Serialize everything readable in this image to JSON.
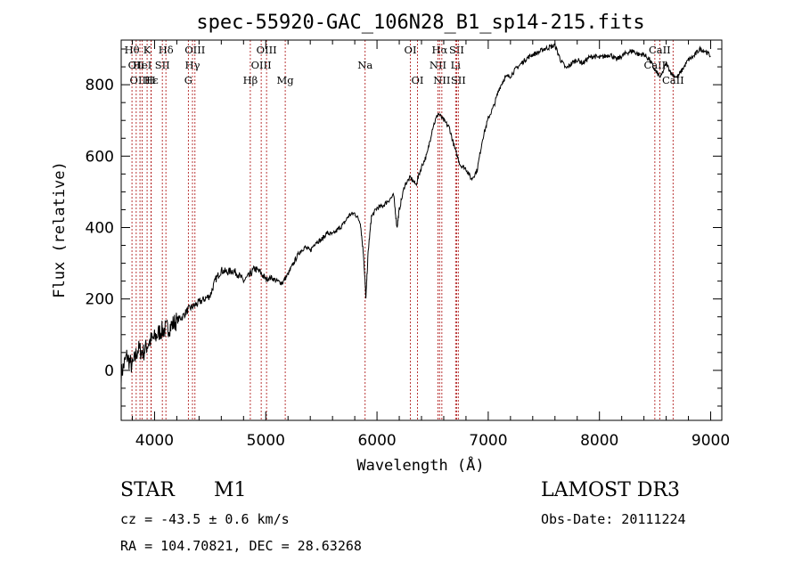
{
  "chart_data": {
    "type": "line",
    "title": "spec-55920-GAC_106N28_B1_sp14-215.fits",
    "xlabel": "Wavelength (Å)",
    "ylabel": "Flux (relative)",
    "xlim": [
      3700,
      9100
    ],
    "ylim": [
      -140,
      925
    ],
    "xticks": [
      4000,
      5000,
      6000,
      7000,
      8000,
      9000
    ],
    "yticks": [
      0,
      200,
      400,
      600,
      800
    ],
    "grid": false,
    "series": [
      {
        "name": "flux",
        "points": [
          [
            3700,
            -10
          ],
          [
            3750,
            40
          ],
          [
            3800,
            10
          ],
          [
            3850,
            60
          ],
          [
            3900,
            50
          ],
          [
            3950,
            80
          ],
          [
            4000,
            90
          ],
          [
            4050,
            110
          ],
          [
            4100,
            115
          ],
          [
            4150,
            125
          ],
          [
            4200,
            140
          ],
          [
            4250,
            150
          ],
          [
            4300,
            170
          ],
          [
            4350,
            180
          ],
          [
            4400,
            190
          ],
          [
            4450,
            200
          ],
          [
            4500,
            210
          ],
          [
            4550,
            255
          ],
          [
            4600,
            280
          ],
          [
            4650,
            275
          ],
          [
            4700,
            280
          ],
          [
            4750,
            270
          ],
          [
            4800,
            250
          ],
          [
            4850,
            265
          ],
          [
            4900,
            285
          ],
          [
            4950,
            275
          ],
          [
            5000,
            255
          ],
          [
            5050,
            260
          ],
          [
            5100,
            250
          ],
          [
            5150,
            245
          ],
          [
            5200,
            270
          ],
          [
            5250,
            300
          ],
          [
            5300,
            330
          ],
          [
            5350,
            345
          ],
          [
            5400,
            335
          ],
          [
            5450,
            360
          ],
          [
            5500,
            365
          ],
          [
            5550,
            385
          ],
          [
            5600,
            380
          ],
          [
            5650,
            395
          ],
          [
            5700,
            410
          ],
          [
            5750,
            435
          ],
          [
            5800,
            440
          ],
          [
            5850,
            415
          ],
          [
            5880,
            320
          ],
          [
            5900,
            200
          ],
          [
            5920,
            330
          ],
          [
            5950,
            430
          ],
          [
            6000,
            455
          ],
          [
            6050,
            460
          ],
          [
            6100,
            475
          ],
          [
            6150,
            490
          ],
          [
            6180,
            400
          ],
          [
            6200,
            450
          ],
          [
            6250,
            520
          ],
          [
            6300,
            540
          ],
          [
            6350,
            520
          ],
          [
            6400,
            570
          ],
          [
            6450,
            605
          ],
          [
            6500,
            680
          ],
          [
            6550,
            720
          ],
          [
            6600,
            700
          ],
          [
            6650,
            680
          ],
          [
            6700,
            620
          ],
          [
            6750,
            575
          ],
          [
            6800,
            565
          ],
          [
            6850,
            535
          ],
          [
            6900,
            560
          ],
          [
            6950,
            650
          ],
          [
            7000,
            705
          ],
          [
            7050,
            740
          ],
          [
            7100,
            790
          ],
          [
            7150,
            820
          ],
          [
            7200,
            825
          ],
          [
            7250,
            845
          ],
          [
            7300,
            860
          ],
          [
            7350,
            875
          ],
          [
            7400,
            885
          ],
          [
            7450,
            890
          ],
          [
            7500,
            900
          ],
          [
            7550,
            905
          ],
          [
            7600,
            910
          ],
          [
            7650,
            870
          ],
          [
            7700,
            845
          ],
          [
            7750,
            860
          ],
          [
            7800,
            870
          ],
          [
            7850,
            860
          ],
          [
            7900,
            875
          ],
          [
            7950,
            880
          ],
          [
            8000,
            875
          ],
          [
            8050,
            880
          ],
          [
            8100,
            885
          ],
          [
            8150,
            870
          ],
          [
            8200,
            880
          ],
          [
            8250,
            890
          ],
          [
            8300,
            895
          ],
          [
            8350,
            885
          ],
          [
            8400,
            885
          ],
          [
            8450,
            870
          ],
          [
            8500,
            840
          ],
          [
            8550,
            820
          ],
          [
            8600,
            860
          ],
          [
            8650,
            830
          ],
          [
            8700,
            820
          ],
          [
            8750,
            845
          ],
          [
            8800,
            870
          ],
          [
            8850,
            880
          ],
          [
            8900,
            900
          ],
          [
            8950,
            895
          ],
          [
            9000,
            880
          ]
        ]
      }
    ],
    "emission_lines": [
      {
        "x": 3797,
        "label": "Hθ",
        "row": 0
      },
      {
        "x": 3835,
        "label": "OII",
        "row": 1
      },
      {
        "x": 3869,
        "label": "OIII",
        "row": 2
      },
      {
        "x": 3889,
        "label": "HeI",
        "row": 1
      },
      {
        "x": 3933,
        "label": "K",
        "row": 0
      },
      {
        "x": 3968,
        "label": "H",
        "row": 2
      },
      {
        "x": 3970,
        "label": "Hε",
        "row": 2
      },
      {
        "x": 4070,
        "label": "SII",
        "row": 1
      },
      {
        "x": 4102,
        "label": "Hδ",
        "row": 0
      },
      {
        "x": 4304,
        "label": "G",
        "row": 2
      },
      {
        "x": 4341,
        "label": "Hγ",
        "row": 1
      },
      {
        "x": 4363,
        "label": "OIII",
        "row": 0
      },
      {
        "x": 4861,
        "label": "Hβ",
        "row": 2
      },
      {
        "x": 4959,
        "label": "OIII",
        "row": 1
      },
      {
        "x": 5007,
        "label": "OIII",
        "row": 0
      },
      {
        "x": 5175,
        "label": "Mg",
        "row": 2
      },
      {
        "x": 5893,
        "label": "Na",
        "row": 1
      },
      {
        "x": 6300,
        "label": "OI",
        "row": 0
      },
      {
        "x": 6364,
        "label": "OI",
        "row": 2
      },
      {
        "x": 6548,
        "label": "NII",
        "row": 1
      },
      {
        "x": 6563,
        "label": "Hα",
        "row": 0
      },
      {
        "x": 6583,
        "label": "NII",
        "row": 2
      },
      {
        "x": 6707,
        "label": "Li",
        "row": 1
      },
      {
        "x": 6716,
        "label": "SII",
        "row": 0
      },
      {
        "x": 6731,
        "label": "SII",
        "row": 2
      },
      {
        "x": 8498,
        "label": "CaII",
        "row": 1
      },
      {
        "x": 8542,
        "label": "CaII",
        "row": 0
      },
      {
        "x": 8662,
        "label": "CaII",
        "row": 2
      }
    ]
  },
  "info": {
    "object_class": "STAR",
    "subclass": "M1",
    "survey": "LAMOST DR3",
    "redshift": "cz = -43.5 ± 0.6 km/s",
    "obs_date": "Obs-Date: 20111224",
    "coords": "RA = 104.70821, DEC =  28.63268"
  }
}
